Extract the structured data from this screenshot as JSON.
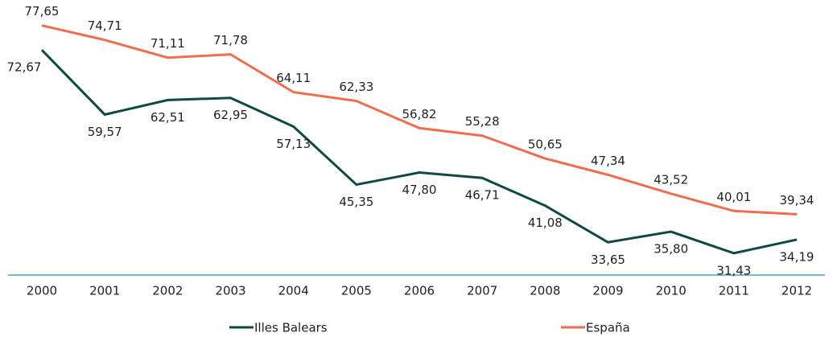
{
  "chart_data": {
    "type": "line",
    "categories": [
      "2000",
      "2001",
      "2002",
      "2003",
      "2004",
      "2005",
      "2006",
      "2007",
      "2008",
      "2009",
      "2010",
      "2011",
      "2012"
    ],
    "series": [
      {
        "name": "Illes Balears",
        "color": "#0e4a42",
        "values": [
          72.67,
          59.57,
          62.51,
          62.95,
          57.13,
          45.35,
          47.8,
          46.71,
          41.08,
          33.65,
          35.8,
          31.43,
          34.19
        ],
        "value_labels": [
          "72,67",
          "59,57",
          "62,51",
          "62,95",
          "57,13",
          "45,35",
          "47,80",
          "46,71",
          "41,08",
          "33,65",
          "35,80",
          "31,43",
          "34,19"
        ]
      },
      {
        "name": "España",
        "color": "#ee6e4f",
        "values": [
          77.65,
          74.71,
          71.11,
          71.78,
          64.11,
          62.33,
          56.82,
          55.28,
          50.65,
          47.34,
          43.52,
          40.01,
          39.34
        ],
        "value_labels": [
          "77,65",
          "74,71",
          "71,11",
          "71,78",
          "64,11",
          "62,33",
          "56,82",
          "55,28",
          "50,65",
          "47,34",
          "43,52",
          "40,01",
          "39,34"
        ]
      }
    ],
    "ylim": [
      27,
      82
    ]
  }
}
